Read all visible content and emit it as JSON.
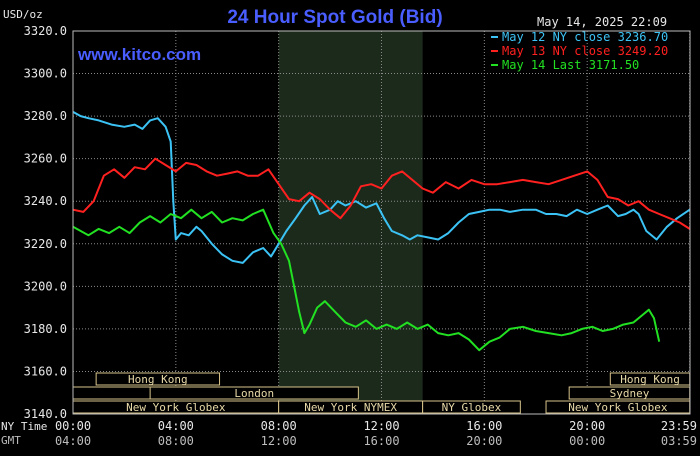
{
  "chart_data": {
    "type": "line",
    "title": "24 Hour Spot Gold (Bid)",
    "ylabel": "USD/oz",
    "watermark": "www.kitco.com",
    "timestamp": "May 14, 2025 22:09",
    "ylim": [
      3140,
      3320
    ],
    "xlim": [
      0,
      24
    ],
    "yticks": [
      "3320.0",
      "3300.0",
      "3280.0",
      "3260.0",
      "3240.0",
      "3220.0",
      "3200.0",
      "3180.0",
      "3160.0",
      "3140.0"
    ],
    "xticks_ny": [
      "00:00",
      "04:00",
      "08:00",
      "12:00",
      "16:00",
      "20:00",
      "23:59"
    ],
    "xticks_gmt": [
      "04:00",
      "08:00",
      "12:00",
      "16:00",
      "20:00",
      "00:00",
      "03:59"
    ],
    "x_axis_row_labels": [
      "NY Time",
      "GMT"
    ],
    "grid": true,
    "legend_position": "top-right",
    "colors": {
      "background": "#000000",
      "plot": "#000000",
      "grid": "#9a9a9a",
      "highlight": "#1c2a1c",
      "title": "#4a5eff",
      "watermark": "#4a5eff",
      "market_box": "#d8c38a"
    },
    "series": [
      {
        "name": "May 12 NY close 3236.70",
        "color": "#3cc3f5",
        "x": [
          0.0,
          0.3,
          0.6,
          1.0,
          1.5,
          2.0,
          2.4,
          2.7,
          3.0,
          3.3,
          3.6,
          3.8,
          3.9,
          4.0,
          4.2,
          4.5,
          4.8,
          5.0,
          5.4,
          5.8,
          6.2,
          6.6,
          7.0,
          7.4,
          7.7,
          8.0,
          8.3,
          8.6,
          9.0,
          9.3,
          9.6,
          10.0,
          10.3,
          10.6,
          11.0,
          11.4,
          11.8,
          12.1,
          12.4,
          12.8,
          13.1,
          13.4,
          13.8,
          14.2,
          14.6,
          15.0,
          15.4,
          15.8,
          16.2,
          16.6,
          17.0,
          17.5,
          18.0,
          18.4,
          18.8,
          19.2,
          19.6,
          20.0,
          20.4,
          20.8,
          21.2,
          21.5,
          21.8,
          22.0,
          22.3,
          22.7,
          23.1,
          23.5,
          23.99
        ],
        "y": [
          3282,
          3280,
          3279,
          3278,
          3276,
          3275,
          3276,
          3274,
          3278,
          3279,
          3275,
          3268,
          3240,
          3222,
          3225,
          3224,
          3228,
          3226,
          3220,
          3215,
          3212,
          3211,
          3216,
          3218,
          3214,
          3220,
          3226,
          3231,
          3238,
          3242,
          3234,
          3236,
          3240,
          3238,
          3240,
          3237,
          3239,
          3232,
          3226,
          3224,
          3222,
          3224,
          3223,
          3222,
          3225,
          3230,
          3234,
          3235,
          3236,
          3236,
          3235,
          3236,
          3236,
          3234,
          3234,
          3233,
          3236,
          3234,
          3236,
          3238,
          3233,
          3234,
          3236,
          3234,
          3226,
          3222,
          3228,
          3232,
          3236
        ]
      },
      {
        "name": "May 13 NY close 3249.20",
        "color": "#ff2020",
        "x": [
          0.0,
          0.4,
          0.8,
          1.2,
          1.6,
          2.0,
          2.4,
          2.8,
          3.2,
          3.6,
          4.0,
          4.4,
          4.8,
          5.2,
          5.6,
          6.0,
          6.4,
          6.8,
          7.2,
          7.6,
          8.0,
          8.4,
          8.8,
          9.2,
          9.6,
          10.0,
          10.4,
          10.8,
          11.2,
          11.6,
          12.0,
          12.4,
          12.8,
          13.2,
          13.6,
          14.0,
          14.5,
          15.0,
          15.5,
          16.0,
          16.5,
          17.0,
          17.5,
          18.0,
          18.5,
          19.0,
          19.5,
          20.0,
          20.4,
          20.8,
          21.2,
          21.6,
          22.0,
          22.4,
          22.8,
          23.2,
          23.6,
          23.99
        ],
        "y": [
          3236,
          3235,
          3240,
          3252,
          3255,
          3251,
          3256,
          3255,
          3260,
          3257,
          3254,
          3258,
          3257,
          3254,
          3252,
          3253,
          3254,
          3252,
          3252,
          3255,
          3248,
          3241,
          3240,
          3244,
          3241,
          3236,
          3232,
          3238,
          3247,
          3248,
          3246,
          3252,
          3254,
          3250,
          3246,
          3244,
          3249,
          3246,
          3250,
          3248,
          3248,
          3249,
          3250,
          3249,
          3248,
          3250,
          3252,
          3254,
          3250,
          3242,
          3241,
          3238,
          3240,
          3236,
          3234,
          3232,
          3230,
          3227
        ]
      },
      {
        "name": "May 14 Last 3171.50",
        "color": "#22e022",
        "x": [
          0.0,
          0.3,
          0.6,
          1.0,
          1.4,
          1.8,
          2.2,
          2.6,
          3.0,
          3.4,
          3.8,
          4.2,
          4.6,
          5.0,
          5.4,
          5.8,
          6.2,
          6.6,
          7.0,
          7.4,
          7.8,
          8.1,
          8.4,
          8.6,
          8.8,
          9.0,
          9.2,
          9.5,
          9.8,
          10.2,
          10.6,
          11.0,
          11.4,
          11.8,
          12.2,
          12.6,
          13.0,
          13.4,
          13.8,
          14.2,
          14.6,
          15.0,
          15.4,
          15.8,
          16.2,
          16.6,
          17.0,
          17.5,
          18.0,
          18.5,
          19.0,
          19.4,
          19.8,
          20.2,
          20.6,
          21.0,
          21.4,
          21.8,
          22.2,
          22.4,
          22.6,
          22.8
        ],
        "y": [
          3228,
          3226,
          3224,
          3227,
          3225,
          3228,
          3225,
          3230,
          3233,
          3230,
          3234,
          3232,
          3236,
          3232,
          3235,
          3230,
          3232,
          3231,
          3234,
          3236,
          3225,
          3220,
          3212,
          3200,
          3188,
          3178,
          3182,
          3190,
          3193,
          3188,
          3183,
          3181,
          3184,
          3180,
          3182,
          3180,
          3183,
          3180,
          3182,
          3178,
          3177,
          3178,
          3175,
          3170,
          3174,
          3176,
          3180,
          3181,
          3179,
          3178,
          3177,
          3178,
          3180,
          3181,
          3179,
          3180,
          3182,
          3183,
          3187,
          3189,
          3185,
          3174
        ]
      }
    ],
    "highlight_range": [
      8.0,
      13.6
    ],
    "market_rows": [
      [
        {
          "label": "Hong Kong",
          "start": 0.9,
          "end": 5.7
        },
        {
          "label": "Hong Kong",
          "start": 20.9,
          "end": 23.99
        }
      ],
      [
        {
          "label": "",
          "start": 0.0,
          "end": 8.0
        },
        {
          "label": "London",
          "start": 3.0,
          "end": 11.1
        },
        {
          "label": "Sydney",
          "start": 19.3,
          "end": 23.99
        }
      ],
      [
        {
          "label": "New York Globex",
          "start": 0.0,
          "end": 8.0
        },
        {
          "label": "New York NYMEX",
          "start": 8.0,
          "end": 13.6
        },
        {
          "label": "NY Globex",
          "start": 13.6,
          "end": 17.4
        },
        {
          "label": "New York Globex",
          "start": 18.4,
          "end": 23.99
        }
      ]
    ]
  }
}
